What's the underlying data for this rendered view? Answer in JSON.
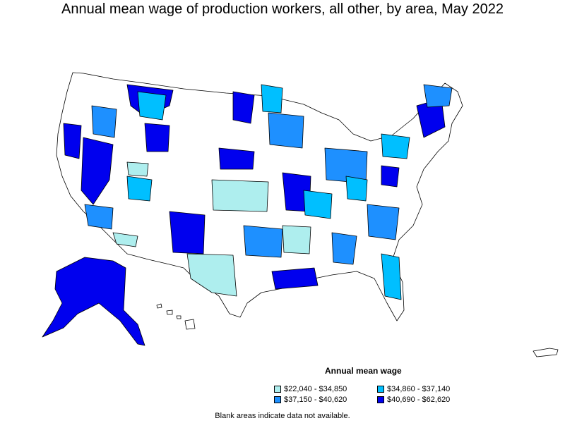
{
  "title": "Annual mean wage of production workers, all other, by area, May 2022",
  "legend": {
    "title": "Annual mean wage",
    "items": [
      {
        "label": "$22,040 - $34,850",
        "color": "#aeeeee"
      },
      {
        "label": "$34,860 - $37,140",
        "color": "#00bfff"
      },
      {
        "label": "$37,150 - $40,620",
        "color": "#1e90ff"
      },
      {
        "label": "$40,690 - $62,620",
        "color": "#0000ee"
      }
    ]
  },
  "note": "Blank areas indicate data not available."
}
